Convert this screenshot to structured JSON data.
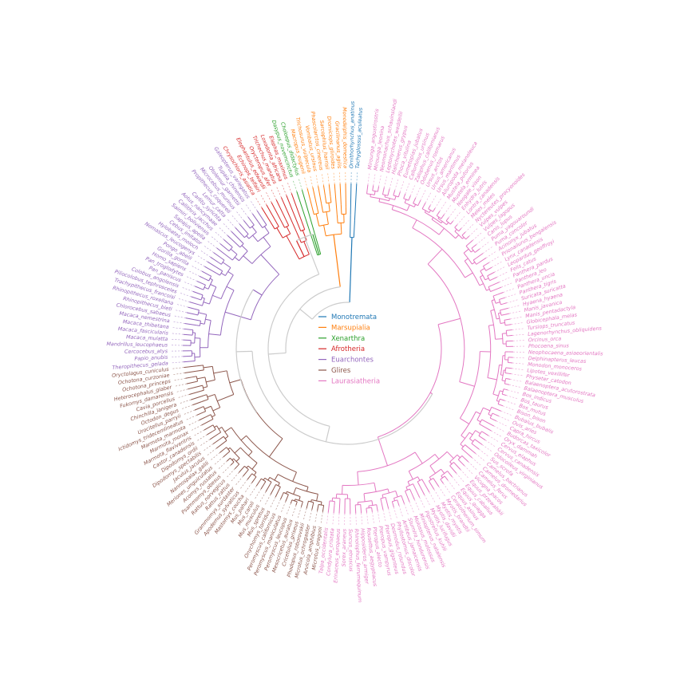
{
  "legend": {
    "items": [
      {
        "name": "Monotremata",
        "color": "#1f77b4"
      },
      {
        "name": "Marsupialia",
        "color": "#ff7f0e"
      },
      {
        "name": "Xenarthra",
        "color": "#2ca02c"
      },
      {
        "name": "Afrotheria",
        "color": "#d62728"
      },
      {
        "name": "Euarchontes",
        "color": "#9467bd"
      },
      {
        "name": "Glires",
        "color": "#8c564b"
      },
      {
        "name": "Laurasiatheria",
        "color": "#e377c2"
      }
    ]
  },
  "colors": {
    "backbone": "#cccccc"
  },
  "clades": [
    {
      "name": "Monotremata",
      "taxa": [
        "Tachyglossus_aculeatus",
        "Ornithorhynchus_anatinus"
      ]
    },
    {
      "name": "Marsupialia",
      "taxa": [
        "Monodelphis_domestica",
        "Gracilinanus_agilis",
        "Dromiciops_gliroides",
        "Sarcophilus_harrisii",
        "Phascolarctos_cinereus",
        "Vombatus_ursinus",
        "Trichosurus_vulpecula",
        "Macropus_eugenii"
      ]
    },
    {
      "name": "Xenarthra",
      "taxa": [
        "Choloepus_didactylus",
        "Dasypus_novemcinctus"
      ]
    },
    {
      "name": "Afrotheria",
      "taxa": [
        "Elephas_maximus",
        "Loxodonta_africana",
        "Trichechus_manatus",
        "Orycteropus_afer",
        "Elephantulus_edwardii",
        "Echinops_telfairi",
        "Chrysochloris_asiatica"
      ]
    },
    {
      "name": "Euarchontes",
      "taxa": [
        "Galeopterus_variegatus",
        "Tupaia_chinensis",
        "Otolemur_garnettii",
        "Microcebus_murinus",
        "Propithecus_coquereli",
        "Lemur_catta",
        "Carlito_syrichta",
        "Aotus_nancymaae",
        "Callithrix_jacchus",
        "Saimiri_boliviensis",
        "Sapajus_apella",
        "Cebus_imitator",
        "Hylobates_moloch",
        "Nomascus_leucogenys",
        "Pongo_abelii",
        "Gorilla_gorilla",
        "Homo_sapiens",
        "Pan_troglodytes",
        "Pan_paniscus",
        "Colobus_angolensis",
        "Piliocolobus_tephrosceles",
        "Trachypithecus_francoisi",
        "Rhinopithecus_roxellana",
        "Rhinopithecus_bieti",
        "Chlorocebus_sabaeus",
        "Macaca_nemestrina",
        "Macaca_thibetana",
        "Macaca_fascicularis",
        "Macaca_mulatta",
        "Mandrillus_leucophaeus",
        "Cercocebus_atys",
        "Papio_anubis",
        "Theropithecus_gelada"
      ]
    },
    {
      "name": "Glires",
      "taxa": [
        "Oryctolagus_cuniculus",
        "Ochotona_curzoniae",
        "Ochotona_princeps",
        "Heterocephalus_glaber",
        "Fukomys_damarensis",
        "Cavia_porcellus",
        "Chinchilla_lanigera",
        "Octodon_degus",
        "Urocitellus_parryii",
        "Ictidomys_tridecemlineatus",
        "Marmota_marmota",
        "Marmota_monax",
        "Marmota_flaviventris",
        "Castor_canadensis",
        "Dipodomys_ordii",
        "Dipodomys_spectabilis",
        "Jaculus_jaculus",
        "Nannospalax_galili",
        "Meriones_unguiculatus",
        "Acomys_russatus",
        "Psammomys_obesus",
        "Rattus_norvegicus",
        "Rattus_rattus",
        "Grammomys_surdaster",
        "Apodemus_sylvaticus",
        "Mastomys_coucha",
        "Mus_pahari",
        "Mus_caroli",
        "Mus_musculus",
        "Mus_spretus",
        "Onychomys_torridus",
        "Peromyscus_californicus",
        "Peromyscus_maniculatus",
        "Peromyscus_leucopus",
        "Mesocricetus_auratus",
        "Cricetulus_griseus",
        "Phodopus_roborovskii",
        "Microtus_ochrogaster",
        "Arvicola_amphibius",
        "Microtus_oregoni"
      ]
    },
    {
      "name": "Laurasiatheria",
      "taxa": [
        "Talpa_occidentalis",
        "Condylura_cristata",
        "Erinaceus_europaeus",
        "Sorex_araneus",
        "Suncus_etruscus",
        "Rhinolophus_ferrumequinum",
        "Hipposideros_armiger",
        "Rousettus_aegyptiacus",
        "Pteropus_alecto",
        "Pteropus_vampyrus",
        "Pteropus_giganteus",
        "Desmodus_rotundus",
        "Phyllostomus_discolor",
        "Artibeus_jamaicensis",
        "Sturnira_hondurensis",
        "Molossus_molossus",
        "Miniopterus_natalensis",
        "Pipistrellus_kuhlii",
        "Myotis_lucifugus",
        "Myotis_davidii",
        "Myotis_myotis",
        "Myotis_brandtii",
        "Ceratotherium_simum",
        "Equus_asinus",
        "Equus_quagga",
        "Equus_caballus",
        "Equus_przewalskii",
        "Vicugna_pacos",
        "Camelus_ferus",
        "Camelus_dromedarius",
        "Camelus_bactrianus",
        "Sus_scrofa",
        "Odocoileus_virginianus",
        "Cervus_canadensis",
        "Cervus_elaphus",
        "Oryx_dammah",
        "Budorcas_taxicolor",
        "Capra_hircus",
        "Ovis_aries",
        "Bubalus_bubalis",
        "Bison_bison",
        "Bos_mutus",
        "Bos_taurus",
        "Bos_indicus",
        "Balaenoptera_musculus",
        "Balaenoptera_acutorostrata",
        "Physeter_catodon",
        "Lipotes_vexillifer",
        "Monodon_monoceros",
        "Delphinapterus_leucas",
        "Neophocaena_asiaeorientalis",
        "Phocoena_sinus",
        "Orcinus_orca",
        "Lagenorhynchus_obliquidens",
        "Tursiops_truncatus",
        "Globicephala_melas",
        "Manis_pentadactyla",
        "Manis_javanica",
        "Hyaena_hyaena",
        "Suricata_suricatta",
        "Panthera_tigris",
        "Panthera_uncia",
        "Panthera_leo",
        "Panthera_pardus",
        "Felis_catus",
        "Leopardus_geoffroyi",
        "Lynx_canadensis",
        "Prionailurus_bengalensis",
        "Acinonyx_jubatus",
        "Puma_concolor",
        "Puma_yagouaroundi",
        "Canis_lupus",
        "Vulpes_lagopus",
        "Vulpes_vulpes",
        "Nyctereutes_procyonoides",
        "Meles_meles",
        "Lontra_canadensis",
        "Enhydra_lutris",
        "Neogale_vison",
        "Mustela_erminea",
        "Mustela_putorius",
        "Ailuropoda_melanoleuca",
        "Ursus_maritimus",
        "Ursus_americanus",
        "Ursus_arctos",
        "Odobenus_rosmarus",
        "Zalophus_californianus",
        "Callorhinus_ursinus",
        "Eumetopias_jubatus",
        "Phoca_vitulina",
        "Halichoerus_grypus",
        "Leptonychotes_weddellii",
        "Neomonachus_schauinslandi",
        "Mirounga_leonina",
        "Mirounga_angustirostris"
      ]
    }
  ]
}
